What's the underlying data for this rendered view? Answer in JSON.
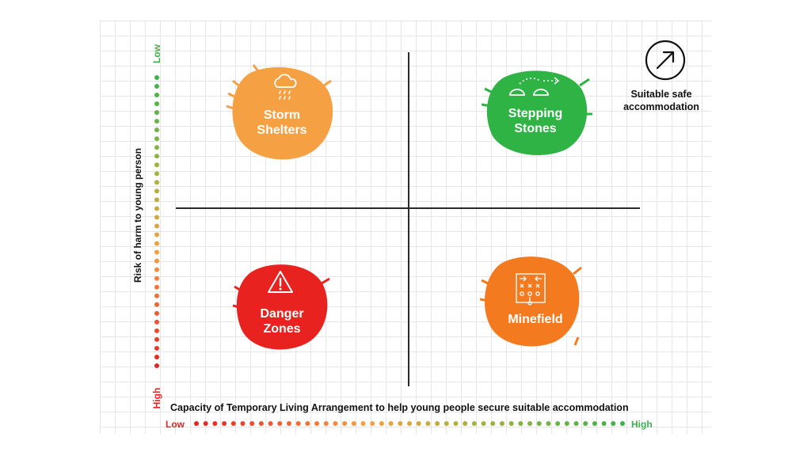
{
  "quadrants": {
    "storm_shelters": {
      "label": "Storm\nShelters",
      "color": "#f5a043",
      "icon": "cloud-rain-icon"
    },
    "stepping_stones": {
      "label": "Stepping\nStones",
      "color": "#2fb344",
      "icon": "stepping-stones-icon"
    },
    "danger_zones": {
      "label": "Danger\nZones",
      "color": "#e8221f",
      "icon": "warning-icon"
    },
    "minefield": {
      "label": "Minefield",
      "color": "#f47a20",
      "icon": "tactics-board-icon"
    }
  },
  "axes": {
    "y_title": "Risk of harm to young person",
    "x_title": "Capacity of Temporary Living Arrangement to help young people secure suitable accommodation",
    "y_low": "Low",
    "y_high": "High",
    "x_low": "Low",
    "x_high": "High",
    "low_color": "#3cb34a",
    "high_color": "#e52421"
  },
  "legend": {
    "label": "Suitable safe\naccommodation",
    "icon": "arrow-up-right-icon"
  }
}
